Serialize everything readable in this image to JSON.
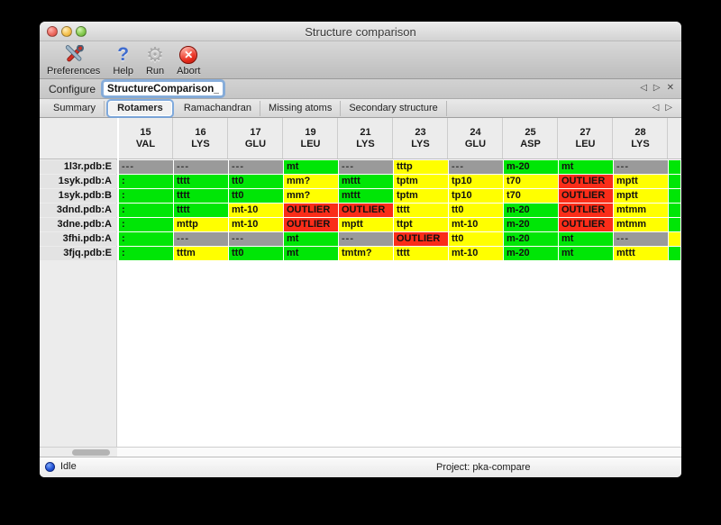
{
  "window_title": "Structure comparison",
  "toolbar": {
    "buttons": [
      {
        "label": "Preferences",
        "icon": "preferences-icon"
      },
      {
        "label": "Help",
        "icon": "help-icon"
      },
      {
        "label": "Run",
        "icon": "run-icon"
      },
      {
        "label": "Abort",
        "icon": "abort-icon"
      }
    ]
  },
  "configure": {
    "label": "Configure",
    "value": "StructureComparison_1"
  },
  "icons": {
    "back": "◁",
    "forward": "▷",
    "close": "✕",
    "help_glyph": "?",
    "gear_glyph": "⚙",
    "abort_glyph": "✕"
  },
  "tabs": {
    "selected": "Rotamers",
    "items": [
      "Summary",
      "Rotamers",
      "Ramachandran",
      "Missing atoms",
      "Secondary structure"
    ]
  },
  "colors": {
    "green": "#00e606",
    "yellow": "#ffff00",
    "red": "#fa2d19",
    "gray": "#9a9a9a"
  },
  "table": {
    "columns": [
      {
        "num": "15",
        "res": "VAL"
      },
      {
        "num": "16",
        "res": "LYS"
      },
      {
        "num": "17",
        "res": "GLU"
      },
      {
        "num": "19",
        "res": "LEU"
      },
      {
        "num": "21",
        "res": "LYS"
      },
      {
        "num": "23",
        "res": "LYS"
      },
      {
        "num": "24",
        "res": "GLU"
      },
      {
        "num": "25",
        "res": "ASP"
      },
      {
        "num": "27",
        "res": "LEU"
      },
      {
        "num": "28",
        "res": "LYS"
      }
    ],
    "rows": [
      {
        "label": "1l3r.pdb:E",
        "cells": [
          {
            "t": "---",
            "c": "gray"
          },
          {
            "t": "---",
            "c": "gray"
          },
          {
            "t": "---",
            "c": "gray"
          },
          {
            "t": "mt",
            "c": "green"
          },
          {
            "t": "---",
            "c": "gray"
          },
          {
            "t": "tttp",
            "c": "yellow"
          },
          {
            "t": "---",
            "c": "gray"
          },
          {
            "t": "m-20",
            "c": "green"
          },
          {
            "t": "mt",
            "c": "green"
          },
          {
            "t": "---",
            "c": "gray"
          }
        ],
        "sliver": "green"
      },
      {
        "label": "1syk.pdb:A",
        "cells": [
          {
            "t": ":",
            "c": "green"
          },
          {
            "t": "tttt",
            "c": "green"
          },
          {
            "t": "tt0",
            "c": "green"
          },
          {
            "t": "mm?",
            "c": "yellow"
          },
          {
            "t": "mttt",
            "c": "green"
          },
          {
            "t": "tptm",
            "c": "yellow"
          },
          {
            "t": "tp10",
            "c": "yellow"
          },
          {
            "t": "t70",
            "c": "yellow"
          },
          {
            "t": "OUTLIER",
            "c": "red"
          },
          {
            "t": "mptt",
            "c": "yellow"
          }
        ],
        "sliver": "green"
      },
      {
        "label": "1syk.pdb:B",
        "cells": [
          {
            "t": ":",
            "c": "green"
          },
          {
            "t": "tttt",
            "c": "green"
          },
          {
            "t": "tt0",
            "c": "green"
          },
          {
            "t": "mm?",
            "c": "yellow"
          },
          {
            "t": "mttt",
            "c": "green"
          },
          {
            "t": "tptm",
            "c": "yellow"
          },
          {
            "t": "tp10",
            "c": "yellow"
          },
          {
            "t": "t70",
            "c": "yellow"
          },
          {
            "t": "OUTLIER",
            "c": "red"
          },
          {
            "t": "mptt",
            "c": "yellow"
          }
        ],
        "sliver": "green"
      },
      {
        "label": "3dnd.pdb:A",
        "cells": [
          {
            "t": ":",
            "c": "green"
          },
          {
            "t": "tttt",
            "c": "green"
          },
          {
            "t": "mt-10",
            "c": "yellow"
          },
          {
            "t": "OUTLIER",
            "c": "red"
          },
          {
            "t": "OUTLIER",
            "c": "red"
          },
          {
            "t": "tttt",
            "c": "yellow"
          },
          {
            "t": "tt0",
            "c": "yellow"
          },
          {
            "t": "m-20",
            "c": "green"
          },
          {
            "t": "OUTLIER",
            "c": "red"
          },
          {
            "t": "mtmm",
            "c": "yellow"
          }
        ],
        "sliver": "green"
      },
      {
        "label": "3dne.pdb:A",
        "cells": [
          {
            "t": ":",
            "c": "green"
          },
          {
            "t": "mttp",
            "c": "yellow"
          },
          {
            "t": "mt-10",
            "c": "yellow"
          },
          {
            "t": "OUTLIER",
            "c": "red"
          },
          {
            "t": "mptt",
            "c": "yellow"
          },
          {
            "t": "ttpt",
            "c": "yellow"
          },
          {
            "t": "mt-10",
            "c": "yellow"
          },
          {
            "t": "m-20",
            "c": "green"
          },
          {
            "t": "OUTLIER",
            "c": "red"
          },
          {
            "t": "mtmm",
            "c": "yellow"
          }
        ],
        "sliver": "green"
      },
      {
        "label": "3fhi.pdb:A",
        "cells": [
          {
            "t": ":",
            "c": "green"
          },
          {
            "t": "---",
            "c": "gray"
          },
          {
            "t": "---",
            "c": "gray"
          },
          {
            "t": "mt",
            "c": "green"
          },
          {
            "t": "---",
            "c": "gray"
          },
          {
            "t": "OUTLIER",
            "c": "red"
          },
          {
            "t": "tt0",
            "c": "yellow"
          },
          {
            "t": "m-20",
            "c": "green"
          },
          {
            "t": "mt",
            "c": "green"
          },
          {
            "t": "---",
            "c": "gray"
          }
        ],
        "sliver": "yellow"
      },
      {
        "label": "3fjq.pdb:E",
        "cells": [
          {
            "t": ":",
            "c": "green"
          },
          {
            "t": "tttm",
            "c": "yellow"
          },
          {
            "t": "tt0",
            "c": "green"
          },
          {
            "t": "mt",
            "c": "green"
          },
          {
            "t": "tmtm?",
            "c": "yellow"
          },
          {
            "t": "tttt",
            "c": "yellow"
          },
          {
            "t": "mt-10",
            "c": "yellow"
          },
          {
            "t": "m-20",
            "c": "green"
          },
          {
            "t": "mt",
            "c": "green"
          },
          {
            "t": "mttt",
            "c": "yellow"
          }
        ],
        "sliver": "green"
      }
    ]
  },
  "statusbar": {
    "status": "Idle",
    "project": "Project: pka-compare"
  }
}
